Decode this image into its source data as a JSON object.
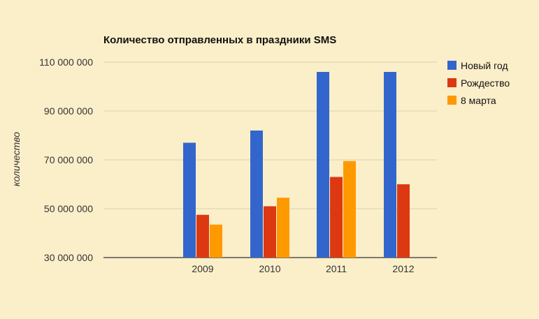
{
  "chart_data": {
    "type": "bar",
    "title": "Количество отправленных в праздники SMS",
    "xlabel": "",
    "ylabel": "количество",
    "categories": [
      "2009",
      "2010",
      "2011",
      "2012"
    ],
    "ylim": [
      30000000,
      110000000
    ],
    "yticks": [
      30000000,
      50000000,
      70000000,
      90000000,
      110000000
    ],
    "ytick_labels": [
      "30 000 000",
      "50 000 000",
      "70 000 000",
      "90 000 000",
      "110 000 000"
    ],
    "grid": true,
    "legend_position": "right",
    "series": [
      {
        "name": "Новый год",
        "color": "#3366cc",
        "values": [
          77000000,
          82000000,
          106000000,
          106000000
        ]
      },
      {
        "name": "Рождество",
        "color": "#dc3912",
        "values": [
          47500000,
          51000000,
          63000000,
          60000000
        ]
      },
      {
        "name": "8 марта",
        "color": "#ff9900",
        "values": [
          43500000,
          54500000,
          69500000,
          null
        ]
      }
    ]
  }
}
